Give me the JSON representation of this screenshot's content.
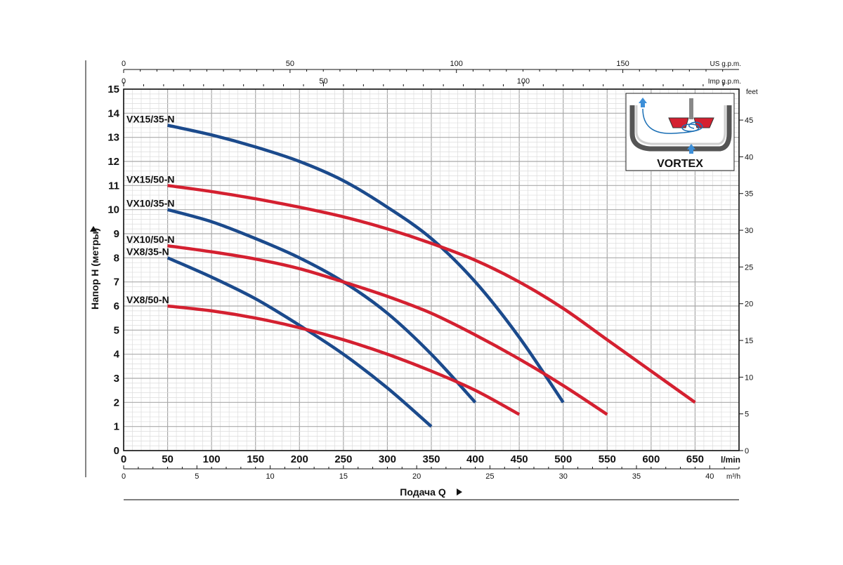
{
  "chart_data": {
    "type": "line",
    "title": "",
    "xlabel": "Подача Q",
    "ylabel": "Напор H (метры)",
    "x_unit": "l/min",
    "x_ticks": [
      0,
      50,
      100,
      150,
      200,
      250,
      300,
      350,
      400,
      450,
      500,
      550,
      600,
      650
    ],
    "y_ticks": [
      0,
      1,
      2,
      3,
      4,
      5,
      6,
      7,
      8,
      9,
      10,
      11,
      12,
      13,
      14,
      15
    ],
    "xlim": [
      0,
      700
    ],
    "ylim": [
      0,
      15
    ],
    "grid": true,
    "secondary_axes": {
      "us_gpm": {
        "unit": "US g.p.m.",
        "ticks": [
          0,
          50,
          100,
          150
        ],
        "minor": 10
      },
      "imp_gpm": {
        "unit": "Imp g.p.m.",
        "ticks": [
          0,
          50,
          100
        ],
        "minor": 10
      },
      "m3h": {
        "unit": "m³/h",
        "ticks": [
          0,
          5,
          10,
          15,
          20,
          25,
          30,
          35,
          40
        ]
      },
      "feet": {
        "unit": "feet",
        "ticks": [
          0,
          5,
          10,
          15,
          20,
          25,
          30,
          35,
          40,
          45
        ]
      }
    },
    "series": [
      {
        "name": "VX15/35-N",
        "color": "#1b4a8c",
        "x": [
          50,
          100,
          150,
          200,
          250,
          300,
          350,
          400,
          450,
          500
        ],
        "y": [
          13.5,
          13.1,
          12.6,
          12.0,
          11.2,
          10.1,
          8.8,
          7.0,
          4.7,
          2.0
        ]
      },
      {
        "name": "VX15/50-N",
        "color": "#d42030",
        "x": [
          50,
          100,
          150,
          200,
          250,
          300,
          350,
          400,
          450,
          500,
          550,
          600,
          650
        ],
        "y": [
          11.0,
          10.75,
          10.45,
          10.1,
          9.7,
          9.2,
          8.6,
          7.9,
          7.0,
          5.9,
          4.6,
          3.3,
          2.0
        ]
      },
      {
        "name": "VX10/35-N",
        "color": "#1b4a8c",
        "x": [
          50,
          100,
          150,
          200,
          250,
          300,
          350,
          400
        ],
        "y": [
          10.0,
          9.5,
          8.8,
          8.0,
          7.0,
          5.7,
          4.0,
          2.0
        ]
      },
      {
        "name": "VX10/50-N",
        "color": "#d42030",
        "x": [
          50,
          100,
          150,
          200,
          250,
          300,
          350,
          400,
          450,
          500,
          550
        ],
        "y": [
          8.5,
          8.25,
          7.95,
          7.55,
          7.0,
          6.4,
          5.7,
          4.8,
          3.8,
          2.7,
          1.5
        ]
      },
      {
        "name": "VX8/35-N",
        "color": "#1b4a8c",
        "x": [
          50,
          100,
          150,
          200,
          250,
          300,
          350
        ],
        "y": [
          8.0,
          7.2,
          6.3,
          5.2,
          4.0,
          2.6,
          1.0
        ]
      },
      {
        "name": "VX8/50-N",
        "color": "#d42030",
        "x": [
          50,
          100,
          150,
          200,
          250,
          300,
          350,
          400,
          450
        ],
        "y": [
          6.0,
          5.8,
          5.5,
          5.1,
          4.6,
          4.0,
          3.3,
          2.5,
          1.5
        ]
      }
    ],
    "inset": {
      "title": "VORTEX"
    }
  }
}
